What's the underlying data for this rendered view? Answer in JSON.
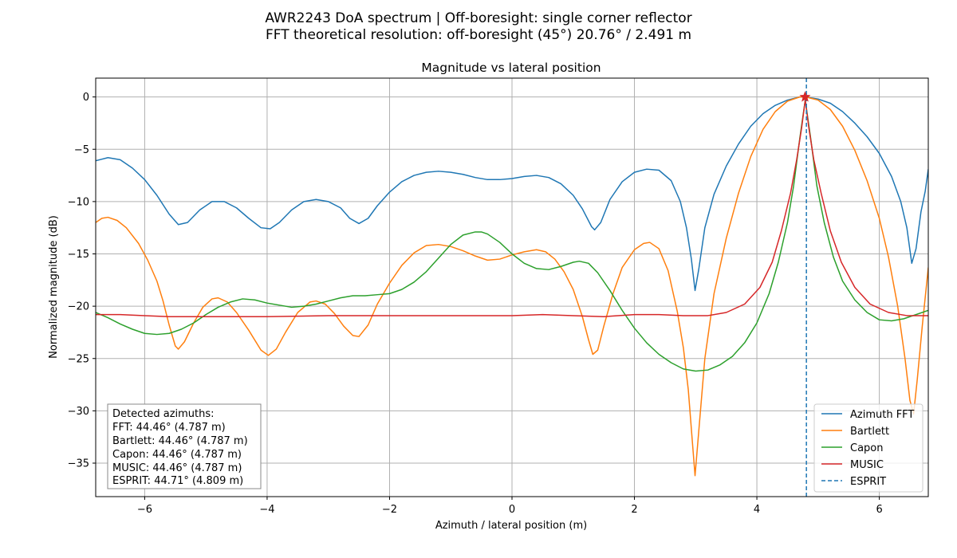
{
  "chart_data": {
    "type": "line",
    "suptitle": [
      "AWR2243 DoA spectrum | Off-boresight: single corner reflector",
      "FFT theoretical resolution: off-boresight (45°) 20.76° / 2.491 m"
    ],
    "title": "Magnitude vs lateral position",
    "xlabel": "Azimuth / lateral position (m)",
    "ylabel": "Normalized magnitude (dB)",
    "xlim": [
      -6.8,
      6.8
    ],
    "ylim": [
      -38.2,
      1.8
    ],
    "xticks": [
      -6,
      -4,
      -2,
      0,
      2,
      4,
      6
    ],
    "yticks": [
      0,
      -5,
      -10,
      -15,
      -20,
      -25,
      -30,
      -35
    ],
    "grid": true,
    "legend_position": "bottom-right",
    "series": [
      {
        "name": "Azimuth FFT",
        "color": "#1f77b4",
        "points": [
          [
            -6.8,
            -6.1
          ],
          [
            -6.6,
            -5.8
          ],
          [
            -6.4,
            -6.0
          ],
          [
            -6.2,
            -6.8
          ],
          [
            -6.0,
            -7.9
          ],
          [
            -5.8,
            -9.4
          ],
          [
            -5.6,
            -11.2
          ],
          [
            -5.45,
            -12.2
          ],
          [
            -5.3,
            -12.0
          ],
          [
            -5.1,
            -10.8
          ],
          [
            -4.9,
            -10.0
          ],
          [
            -4.7,
            -10.0
          ],
          [
            -4.5,
            -10.6
          ],
          [
            -4.3,
            -11.6
          ],
          [
            -4.1,
            -12.5
          ],
          [
            -3.95,
            -12.6
          ],
          [
            -3.8,
            -12.0
          ],
          [
            -3.6,
            -10.8
          ],
          [
            -3.4,
            -10.0
          ],
          [
            -3.2,
            -9.8
          ],
          [
            -3.0,
            -10.0
          ],
          [
            -2.8,
            -10.6
          ],
          [
            -2.65,
            -11.6
          ],
          [
            -2.5,
            -12.1
          ],
          [
            -2.35,
            -11.6
          ],
          [
            -2.2,
            -10.4
          ],
          [
            -2.0,
            -9.1
          ],
          [
            -1.8,
            -8.1
          ],
          [
            -1.6,
            -7.5
          ],
          [
            -1.4,
            -7.2
          ],
          [
            -1.2,
            -7.1
          ],
          [
            -1.0,
            -7.2
          ],
          [
            -0.8,
            -7.4
          ],
          [
            -0.6,
            -7.7
          ],
          [
            -0.4,
            -7.9
          ],
          [
            -0.2,
            -7.9
          ],
          [
            0.0,
            -7.8
          ],
          [
            0.2,
            -7.6
          ],
          [
            0.4,
            -7.5
          ],
          [
            0.6,
            -7.7
          ],
          [
            0.8,
            -8.3
          ],
          [
            1.0,
            -9.4
          ],
          [
            1.15,
            -10.7
          ],
          [
            1.3,
            -12.4
          ],
          [
            1.35,
            -12.7
          ],
          [
            1.45,
            -12.0
          ],
          [
            1.6,
            -9.8
          ],
          [
            1.8,
            -8.1
          ],
          [
            2.0,
            -7.2
          ],
          [
            2.2,
            -6.9
          ],
          [
            2.4,
            -7.0
          ],
          [
            2.6,
            -8.0
          ],
          [
            2.75,
            -10.0
          ],
          [
            2.85,
            -12.5
          ],
          [
            2.93,
            -15.5
          ],
          [
            2.99,
            -18.5
          ],
          [
            3.05,
            -16.5
          ],
          [
            3.15,
            -12.5
          ],
          [
            3.3,
            -9.3
          ],
          [
            3.5,
            -6.6
          ],
          [
            3.7,
            -4.5
          ],
          [
            3.9,
            -2.8
          ],
          [
            4.1,
            -1.6
          ],
          [
            4.3,
            -0.8
          ],
          [
            4.5,
            -0.3
          ],
          [
            4.7,
            0.0
          ],
          [
            4.8,
            0.0
          ],
          [
            5.0,
            -0.2
          ],
          [
            5.2,
            -0.6
          ],
          [
            5.4,
            -1.4
          ],
          [
            5.6,
            -2.5
          ],
          [
            5.8,
            -3.8
          ],
          [
            6.0,
            -5.4
          ],
          [
            6.2,
            -7.6
          ],
          [
            6.35,
            -10.0
          ],
          [
            6.45,
            -12.5
          ],
          [
            6.53,
            -15.9
          ],
          [
            6.6,
            -14.5
          ],
          [
            6.68,
            -11.0
          ],
          [
            6.75,
            -9.0
          ],
          [
            6.8,
            -6.9
          ]
        ]
      },
      {
        "name": "Bartlett",
        "color": "#ff7f0e",
        "points": [
          [
            -6.8,
            -12.0
          ],
          [
            -6.7,
            -11.6
          ],
          [
            -6.6,
            -11.5
          ],
          [
            -6.45,
            -11.8
          ],
          [
            -6.3,
            -12.5
          ],
          [
            -6.1,
            -14.0
          ],
          [
            -5.95,
            -15.6
          ],
          [
            -5.8,
            -17.6
          ],
          [
            -5.7,
            -19.5
          ],
          [
            -5.6,
            -21.8
          ],
          [
            -5.5,
            -23.8
          ],
          [
            -5.45,
            -24.1
          ],
          [
            -5.35,
            -23.4
          ],
          [
            -5.2,
            -21.6
          ],
          [
            -5.05,
            -20.1
          ],
          [
            -4.9,
            -19.3
          ],
          [
            -4.8,
            -19.2
          ],
          [
            -4.65,
            -19.6
          ],
          [
            -4.5,
            -20.6
          ],
          [
            -4.3,
            -22.3
          ],
          [
            -4.1,
            -24.2
          ],
          [
            -3.98,
            -24.7
          ],
          [
            -3.85,
            -24.1
          ],
          [
            -3.7,
            -22.5
          ],
          [
            -3.5,
            -20.6
          ],
          [
            -3.3,
            -19.6
          ],
          [
            -3.2,
            -19.5
          ],
          [
            -3.05,
            -19.8
          ],
          [
            -2.9,
            -20.7
          ],
          [
            -2.75,
            -21.9
          ],
          [
            -2.6,
            -22.8
          ],
          [
            -2.5,
            -22.9
          ],
          [
            -2.35,
            -21.8
          ],
          [
            -2.2,
            -19.8
          ],
          [
            -2.0,
            -17.8
          ],
          [
            -1.8,
            -16.1
          ],
          [
            -1.6,
            -14.9
          ],
          [
            -1.4,
            -14.2
          ],
          [
            -1.2,
            -14.1
          ],
          [
            -1.0,
            -14.3
          ],
          [
            -0.8,
            -14.7
          ],
          [
            -0.6,
            -15.2
          ],
          [
            -0.4,
            -15.6
          ],
          [
            -0.2,
            -15.5
          ],
          [
            0.0,
            -15.1
          ],
          [
            0.2,
            -14.8
          ],
          [
            0.4,
            -14.6
          ],
          [
            0.55,
            -14.8
          ],
          [
            0.7,
            -15.5
          ],
          [
            0.85,
            -16.7
          ],
          [
            1.0,
            -18.4
          ],
          [
            1.15,
            -21.0
          ],
          [
            1.25,
            -23.2
          ],
          [
            1.32,
            -24.6
          ],
          [
            1.4,
            -24.2
          ],
          [
            1.5,
            -21.9
          ],
          [
            1.65,
            -18.8
          ],
          [
            1.8,
            -16.3
          ],
          [
            2.0,
            -14.6
          ],
          [
            2.15,
            -14.0
          ],
          [
            2.25,
            -13.9
          ],
          [
            2.4,
            -14.5
          ],
          [
            2.55,
            -16.6
          ],
          [
            2.7,
            -20.5
          ],
          [
            2.8,
            -24.0
          ],
          [
            2.88,
            -28.0
          ],
          [
            2.94,
            -32.5
          ],
          [
            2.99,
            -36.2
          ],
          [
            3.05,
            -32.0
          ],
          [
            3.15,
            -25.0
          ],
          [
            3.3,
            -18.8
          ],
          [
            3.5,
            -13.5
          ],
          [
            3.7,
            -9.2
          ],
          [
            3.9,
            -5.7
          ],
          [
            4.1,
            -3.1
          ],
          [
            4.3,
            -1.4
          ],
          [
            4.5,
            -0.4
          ],
          [
            4.7,
            0.0
          ],
          [
            4.8,
            0.0
          ],
          [
            5.0,
            -0.3
          ],
          [
            5.2,
            -1.2
          ],
          [
            5.4,
            -2.8
          ],
          [
            5.6,
            -5.1
          ],
          [
            5.8,
            -8.0
          ],
          [
            6.0,
            -11.6
          ],
          [
            6.15,
            -15.3
          ],
          [
            6.3,
            -20.0
          ],
          [
            6.42,
            -25.0
          ],
          [
            6.5,
            -29.0
          ],
          [
            6.56,
            -30.3
          ],
          [
            6.62,
            -27.0
          ],
          [
            6.7,
            -22.0
          ],
          [
            6.8,
            -16.3
          ]
        ]
      },
      {
        "name": "Capon",
        "color": "#2ca02c",
        "points": [
          [
            -6.8,
            -20.6
          ],
          [
            -6.6,
            -21.1
          ],
          [
            -6.4,
            -21.7
          ],
          [
            -6.2,
            -22.2
          ],
          [
            -6.0,
            -22.6
          ],
          [
            -5.8,
            -22.7
          ],
          [
            -5.6,
            -22.6
          ],
          [
            -5.4,
            -22.2
          ],
          [
            -5.2,
            -21.6
          ],
          [
            -5.0,
            -20.8
          ],
          [
            -4.8,
            -20.1
          ],
          [
            -4.6,
            -19.6
          ],
          [
            -4.4,
            -19.3
          ],
          [
            -4.2,
            -19.4
          ],
          [
            -4.0,
            -19.7
          ],
          [
            -3.8,
            -19.9
          ],
          [
            -3.6,
            -20.1
          ],
          [
            -3.4,
            -20.0
          ],
          [
            -3.2,
            -19.8
          ],
          [
            -3.0,
            -19.5
          ],
          [
            -2.8,
            -19.2
          ],
          [
            -2.6,
            -19.0
          ],
          [
            -2.4,
            -19.0
          ],
          [
            -2.2,
            -18.9
          ],
          [
            -2.0,
            -18.8
          ],
          [
            -1.8,
            -18.4
          ],
          [
            -1.6,
            -17.7
          ],
          [
            -1.4,
            -16.7
          ],
          [
            -1.2,
            -15.4
          ],
          [
            -1.0,
            -14.1
          ],
          [
            -0.8,
            -13.2
          ],
          [
            -0.6,
            -12.9
          ],
          [
            -0.5,
            -12.9
          ],
          [
            -0.4,
            -13.1
          ],
          [
            -0.2,
            -13.9
          ],
          [
            0.0,
            -15.0
          ],
          [
            0.2,
            -15.9
          ],
          [
            0.4,
            -16.4
          ],
          [
            0.6,
            -16.5
          ],
          [
            0.8,
            -16.2
          ],
          [
            1.0,
            -15.8
          ],
          [
            1.1,
            -15.7
          ],
          [
            1.25,
            -15.9
          ],
          [
            1.4,
            -16.8
          ],
          [
            1.6,
            -18.5
          ],
          [
            1.8,
            -20.4
          ],
          [
            2.0,
            -22.1
          ],
          [
            2.2,
            -23.5
          ],
          [
            2.4,
            -24.6
          ],
          [
            2.6,
            -25.4
          ],
          [
            2.8,
            -26.0
          ],
          [
            3.0,
            -26.2
          ],
          [
            3.2,
            -26.1
          ],
          [
            3.4,
            -25.6
          ],
          [
            3.6,
            -24.8
          ],
          [
            3.8,
            -23.5
          ],
          [
            4.0,
            -21.6
          ],
          [
            4.2,
            -18.8
          ],
          [
            4.35,
            -15.8
          ],
          [
            4.5,
            -12.0
          ],
          [
            4.6,
            -8.5
          ],
          [
            4.7,
            -4.0
          ],
          [
            4.79,
            -0.3
          ],
          [
            4.88,
            -4.0
          ],
          [
            4.98,
            -8.5
          ],
          [
            5.1,
            -12.0
          ],
          [
            5.25,
            -15.3
          ],
          [
            5.4,
            -17.6
          ],
          [
            5.6,
            -19.4
          ],
          [
            5.8,
            -20.6
          ],
          [
            6.0,
            -21.3
          ],
          [
            6.2,
            -21.4
          ],
          [
            6.4,
            -21.2
          ],
          [
            6.6,
            -20.8
          ],
          [
            6.8,
            -20.4
          ]
        ]
      },
      {
        "name": "MUSIC",
        "color": "#d62728",
        "points": [
          [
            -6.8,
            -20.8
          ],
          [
            -6.4,
            -20.8
          ],
          [
            -6.0,
            -20.9
          ],
          [
            -5.6,
            -21.0
          ],
          [
            -5.0,
            -21.0
          ],
          [
            -4.0,
            -21.0
          ],
          [
            -3.0,
            -20.9
          ],
          [
            -2.0,
            -20.9
          ],
          [
            -1.0,
            -20.9
          ],
          [
            0.0,
            -20.9
          ],
          [
            0.5,
            -20.8
          ],
          [
            1.0,
            -20.9
          ],
          [
            1.5,
            -21.0
          ],
          [
            2.0,
            -20.8
          ],
          [
            2.4,
            -20.8
          ],
          [
            2.8,
            -20.9
          ],
          [
            3.2,
            -20.9
          ],
          [
            3.5,
            -20.6
          ],
          [
            3.8,
            -19.8
          ],
          [
            4.05,
            -18.2
          ],
          [
            4.25,
            -15.8
          ],
          [
            4.4,
            -12.8
          ],
          [
            4.55,
            -9.2
          ],
          [
            4.65,
            -6.0
          ],
          [
            4.73,
            -3.0
          ],
          [
            4.79,
            -0.3
          ],
          [
            4.85,
            -3.0
          ],
          [
            4.93,
            -6.0
          ],
          [
            5.05,
            -9.2
          ],
          [
            5.2,
            -12.8
          ],
          [
            5.38,
            -15.8
          ],
          [
            5.6,
            -18.2
          ],
          [
            5.85,
            -19.8
          ],
          [
            6.15,
            -20.6
          ],
          [
            6.45,
            -20.9
          ],
          [
            6.8,
            -20.9
          ]
        ]
      }
    ],
    "vlines": [
      {
        "name": "ESPRIT",
        "x": 4.809,
        "color": "#1f77b4",
        "style": "dashed"
      }
    ],
    "marker": {
      "x": 4.787,
      "y": 0.0,
      "color": "#d62728",
      "shape": "star"
    },
    "annotation_lines": [
      "Detected azimuths:",
      "FFT: 44.46° (4.787 m)",
      "Bartlett: 44.46° (4.787 m)",
      "Capon: 44.46° (4.787 m)",
      "MUSIC: 44.46° (4.787 m)",
      "ESPRIT: 44.71° (4.809 m)"
    ]
  }
}
